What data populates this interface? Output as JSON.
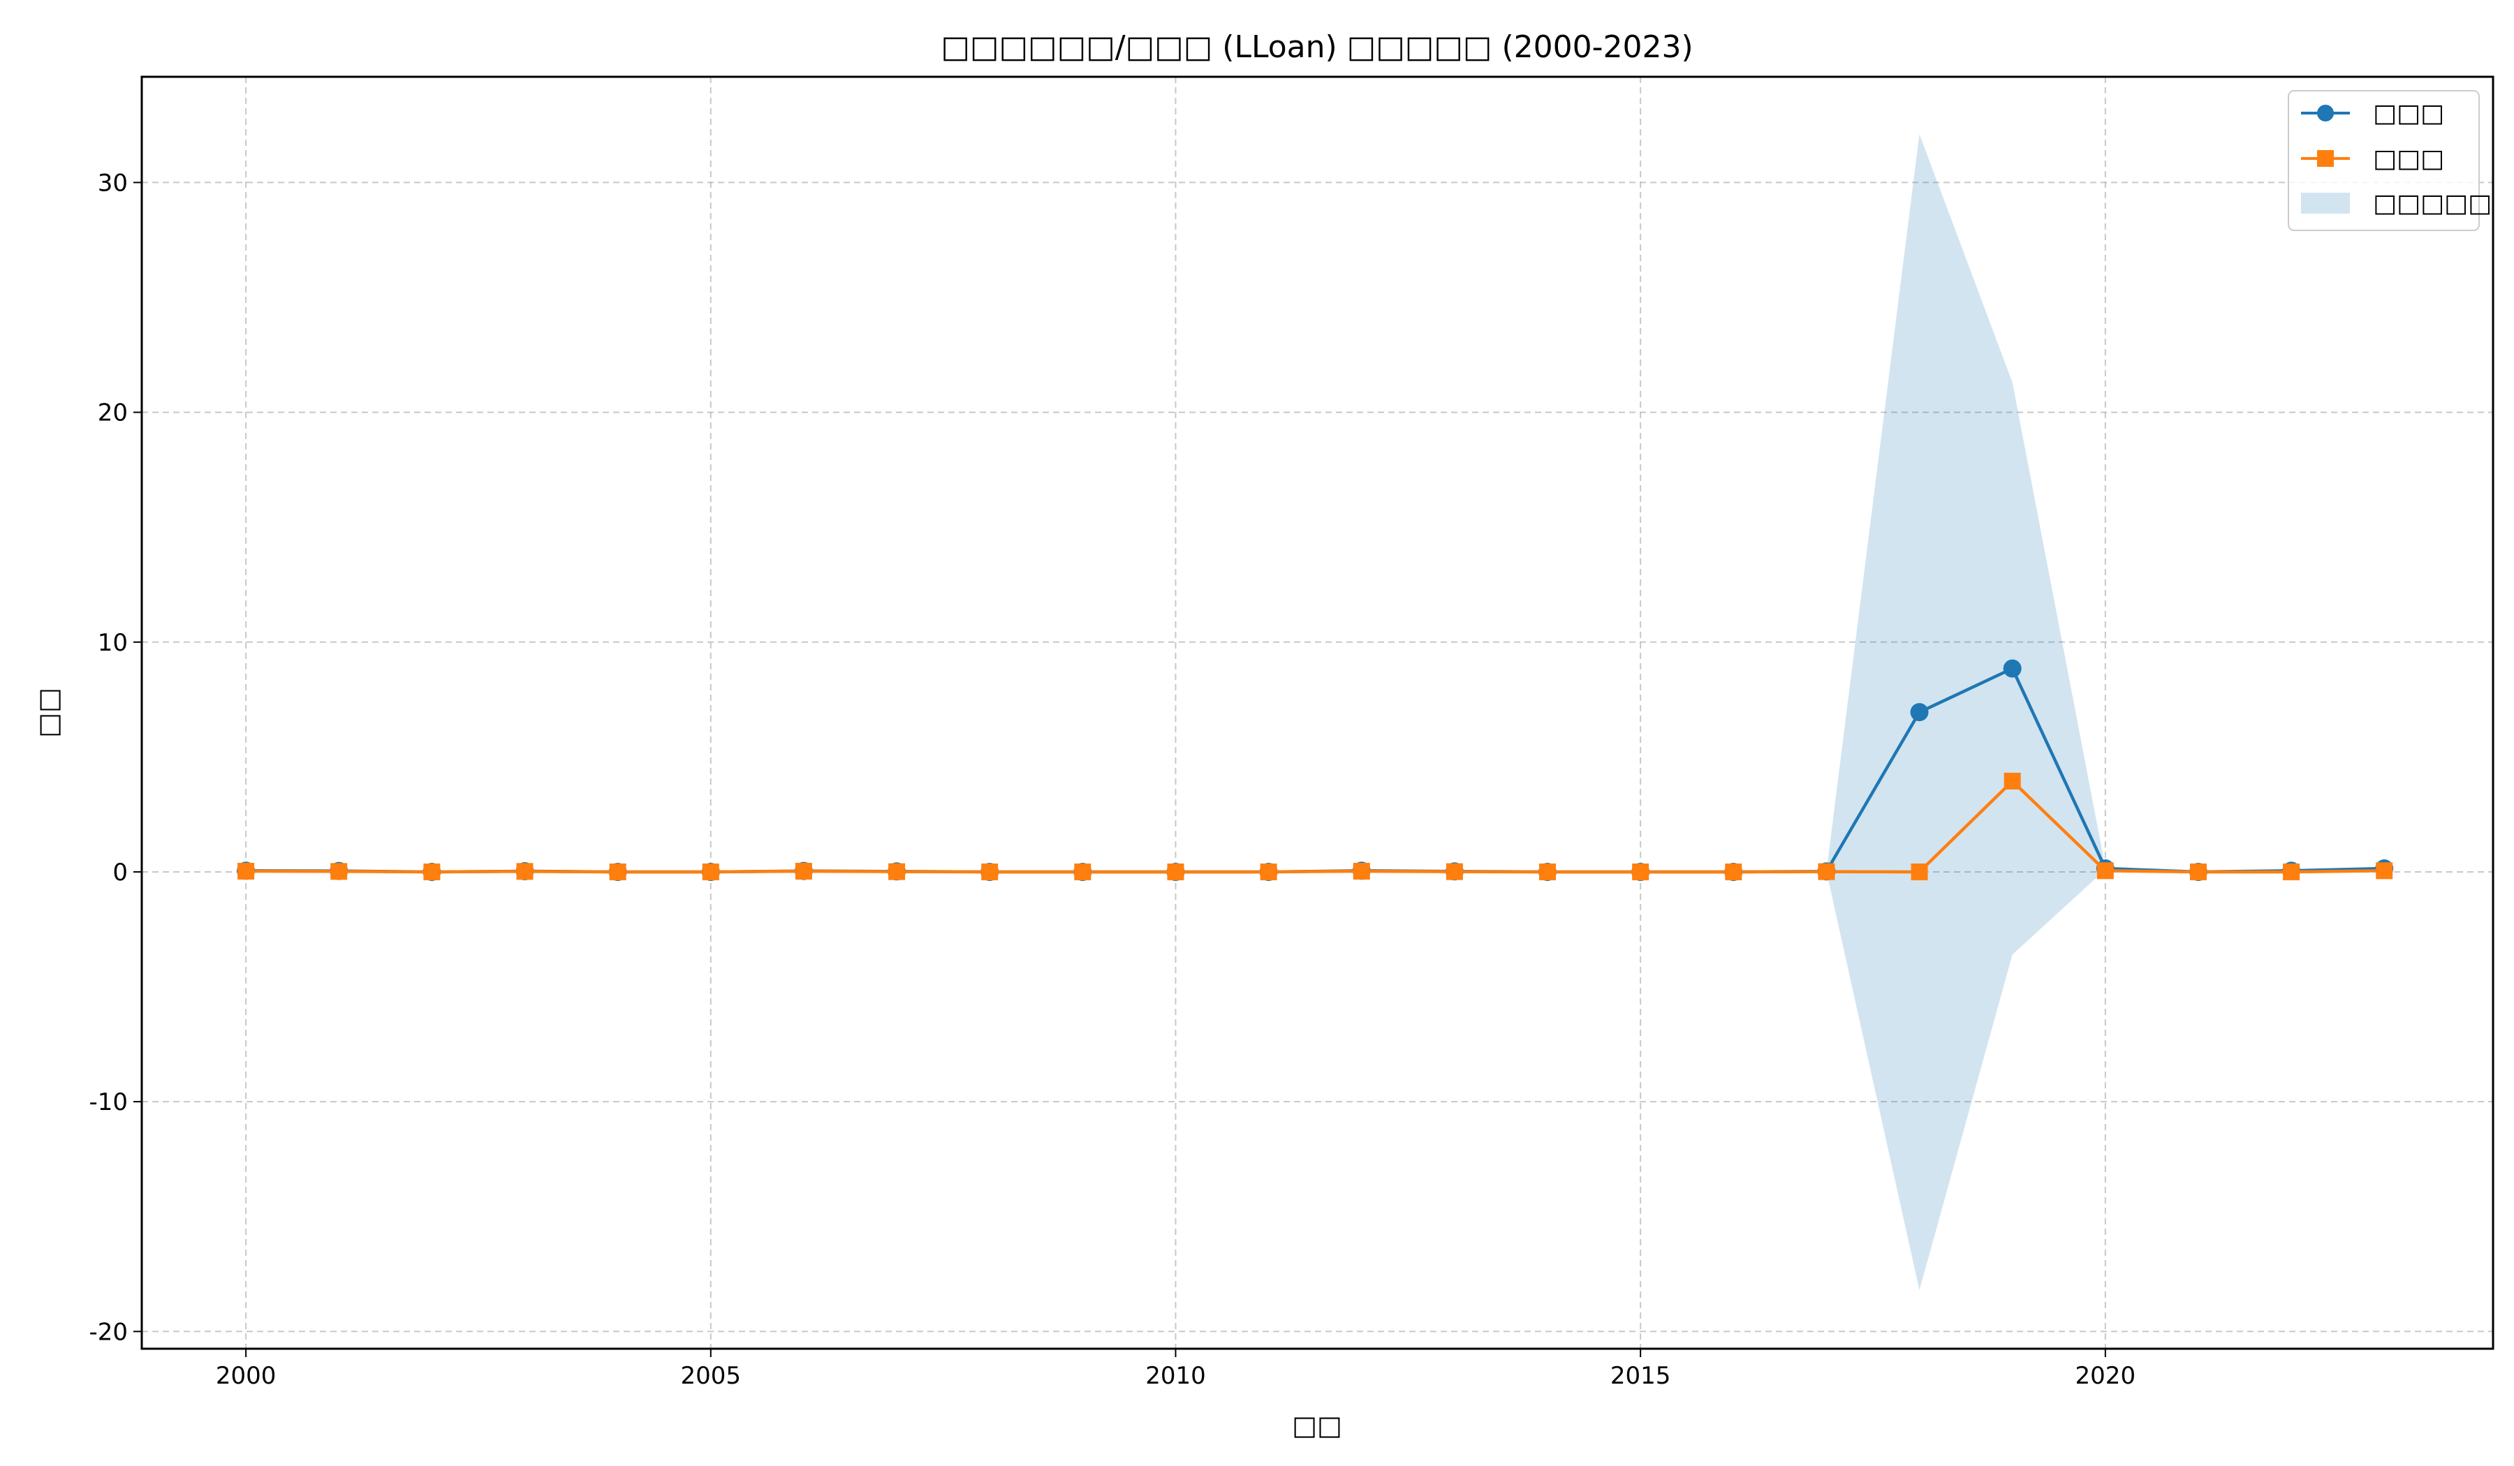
{
  "chart_data": {
    "type": "line",
    "title": "□□□□□□/□□□ (LLoan) □□□□□ (2000-2023)",
    "xlabel": "□□",
    "ylabel": "□□",
    "x": [
      2000,
      2001,
      2002,
      2003,
      2004,
      2005,
      2006,
      2007,
      2008,
      2009,
      2010,
      2011,
      2012,
      2013,
      2014,
      2015,
      2016,
      2017,
      2018,
      2019,
      2020,
      2021,
      2022,
      2023
    ],
    "series": [
      {
        "name": "□□□",
        "color": "#1f77b4",
        "marker": "circle",
        "values": [
          0.05,
          0.04,
          0.0,
          0.03,
          0.0,
          0.0,
          0.04,
          0.02,
          0.0,
          0.0,
          0.0,
          0.0,
          0.05,
          0.02,
          0.0,
          0.0,
          0.0,
          0.02,
          6.95,
          8.85,
          0.15,
          0.0,
          0.05,
          0.15
        ]
      },
      {
        "name": "□□□",
        "color": "#ff7f0e",
        "marker": "square",
        "values": [
          0.03,
          0.02,
          0.0,
          0.02,
          0.0,
          0.0,
          0.03,
          0.01,
          0.0,
          0.0,
          0.0,
          0.0,
          0.03,
          0.01,
          0.0,
          0.0,
          0.0,
          0.01,
          0.0,
          3.95,
          0.05,
          0.0,
          0.0,
          0.05
        ]
      }
    ],
    "band": {
      "name": "□□□□□",
      "color": "#1f77b4",
      "opacity": 0.2,
      "upper": [
        0.05,
        0.04,
        0.0,
        0.03,
        0.0,
        0.0,
        0.04,
        0.02,
        0.0,
        0.0,
        0.0,
        0.0,
        0.05,
        0.02,
        0.0,
        0.0,
        0.0,
        0.02,
        32.1,
        21.3,
        0.2,
        0.0,
        0.05,
        0.15
      ],
      "lower": [
        0.05,
        0.04,
        0.0,
        0.03,
        0.0,
        0.0,
        0.04,
        0.02,
        0.0,
        0.0,
        0.0,
        0.0,
        0.05,
        0.02,
        0.0,
        0.0,
        0.0,
        0.02,
        -18.2,
        -3.6,
        0.1,
        0.0,
        0.05,
        0.15
      ]
    },
    "xlim": [
      1998.88,
      2024.17
    ],
    "ylim": [
      -20.75,
      34.6
    ],
    "xticks": [
      2000,
      2005,
      2010,
      2015,
      2020
    ],
    "yticks": [
      -20,
      -10,
      0,
      10,
      20,
      30
    ],
    "xtick_labels": [
      "2000",
      "2005",
      "2010",
      "2015",
      "2020"
    ],
    "ytick_labels": [
      "-20",
      "-10",
      "0",
      "10",
      "20",
      "30"
    ],
    "grid": true,
    "legend_position": "top-right"
  }
}
